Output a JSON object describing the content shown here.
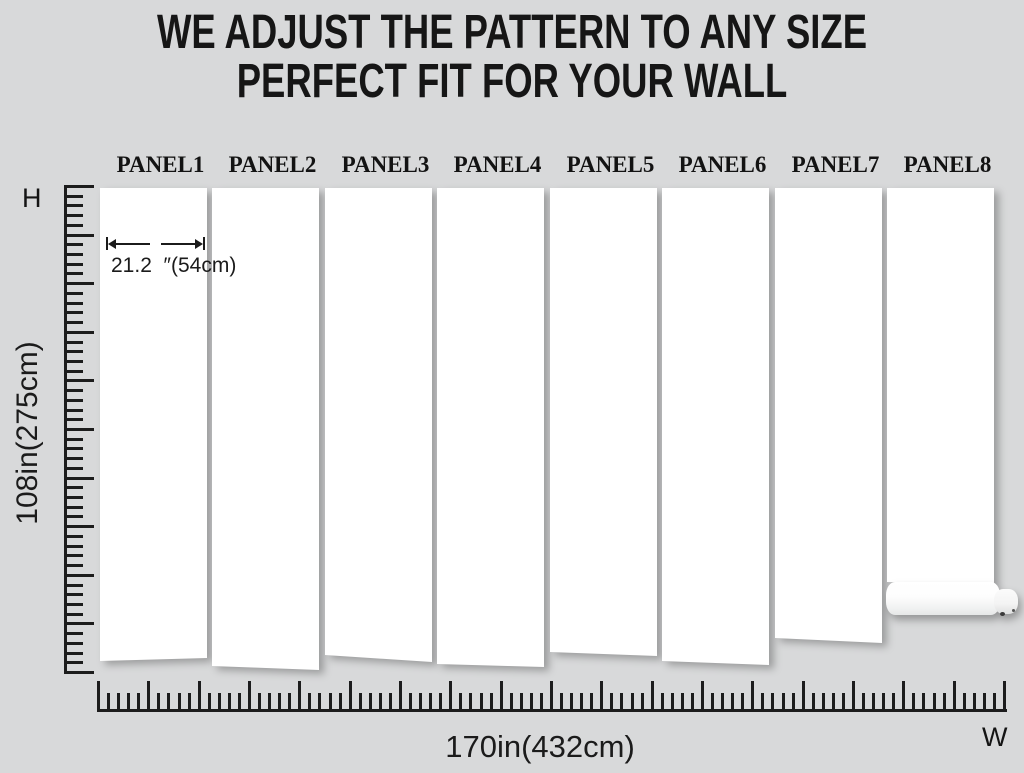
{
  "title": {
    "line1": "WE ADJUST THE PATTERN TO ANY SIZE",
    "line2": "PERFECT FIT FOR YOUR WALL"
  },
  "panels": [
    {
      "label": "PANEL1"
    },
    {
      "label": "PANEL2"
    },
    {
      "label": "PANEL3"
    },
    {
      "label": "PANEL4"
    },
    {
      "label": "PANEL5"
    },
    {
      "label": "PANEL6"
    },
    {
      "label": "PANEL7"
    },
    {
      "label": "PANEL8"
    }
  ],
  "annotation": {
    "panel_width_text": "21.2  ″(54cm)"
  },
  "axes": {
    "height_axis_letter": "H",
    "width_axis_letter": "W",
    "height_dimension": "108in(275cm)",
    "width_dimension": "170in(432cm)"
  },
  "rulers": {
    "vertical": {
      "ticks": 51,
      "long_every": 5
    },
    "horizontal": {
      "ticks": 91,
      "long_every": 5
    }
  },
  "colors": {
    "background": "#d8d9da",
    "panel": "#ffffff",
    "ink": "#1b1b1b"
  }
}
